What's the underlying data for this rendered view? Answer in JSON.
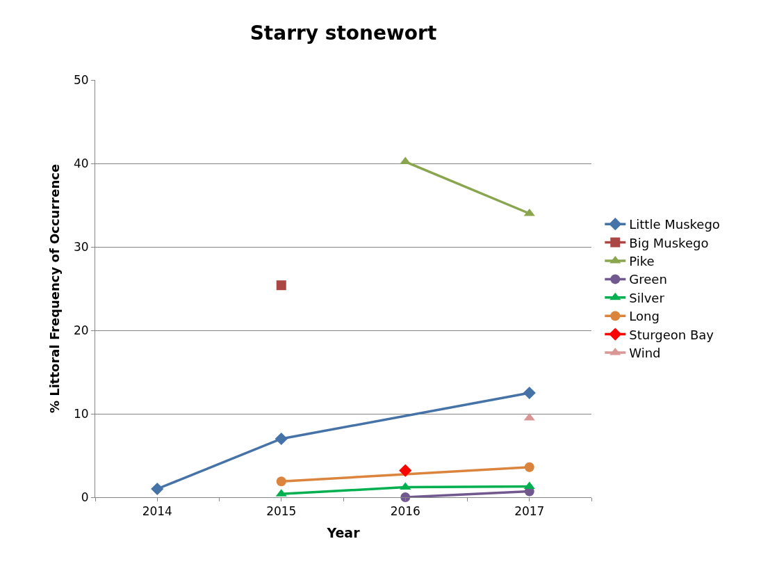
{
  "chart_data": {
    "type": "line",
    "title": "Starry stonewort",
    "xlabel": "Year",
    "ylabel": "% Littoral Frequency of Occurrence",
    "series": [
      {
        "name": "Little Muskego",
        "color": "#4572a7",
        "marker": "diamond",
        "x": [
          2014,
          2015,
          2017
        ],
        "values": [
          1.0,
          7.0,
          12.5
        ]
      },
      {
        "name": "Big Muskego",
        "color": "#aa4643",
        "marker": "square",
        "x": [
          2015
        ],
        "values": [
          25.4
        ]
      },
      {
        "name": "Pike",
        "color": "#89a54e",
        "marker": "triangle",
        "x": [
          2016,
          2017
        ],
        "values": [
          40.2,
          34.0
        ]
      },
      {
        "name": "Green",
        "color": "#71588f",
        "marker": "circle",
        "x": [
          2016,
          2017
        ],
        "values": [
          0.0,
          0.7
        ]
      },
      {
        "name": "Silver",
        "color": "#00b050",
        "marker": "triangle",
        "x": [
          2015,
          2016,
          2017
        ],
        "values": [
          0.4,
          1.2,
          1.3
        ]
      },
      {
        "name": "Long",
        "color": "#db843d",
        "marker": "circle",
        "x": [
          2015,
          2017
        ],
        "values": [
          1.9,
          3.6
        ]
      },
      {
        "name": "Sturgeon Bay",
        "color": "#ff0000",
        "marker": "diamond",
        "x": [
          2016
        ],
        "values": [
          3.2
        ]
      },
      {
        "name": "Wind",
        "color": "#d99694",
        "marker": "triangle",
        "x": [
          2017
        ],
        "values": [
          9.5
        ]
      }
    ],
    "xlim": [
      2013.5,
      2017.5
    ],
    "xticks": [
      {
        "value": 2013.5,
        "label": null
      },
      2014,
      {
        "value": 2014.5,
        "label": null
      },
      2015,
      {
        "value": 2015.5,
        "label": null
      },
      2016,
      {
        "value": 2016.5,
        "label": null
      },
      2017,
      {
        "value": 2017.5,
        "label": null
      }
    ],
    "ylim": [
      0,
      50
    ],
    "yticks": [
      0,
      10,
      20,
      30,
      40,
      50
    ],
    "grid": "y",
    "legend": "right",
    "line_style": "solid"
  }
}
